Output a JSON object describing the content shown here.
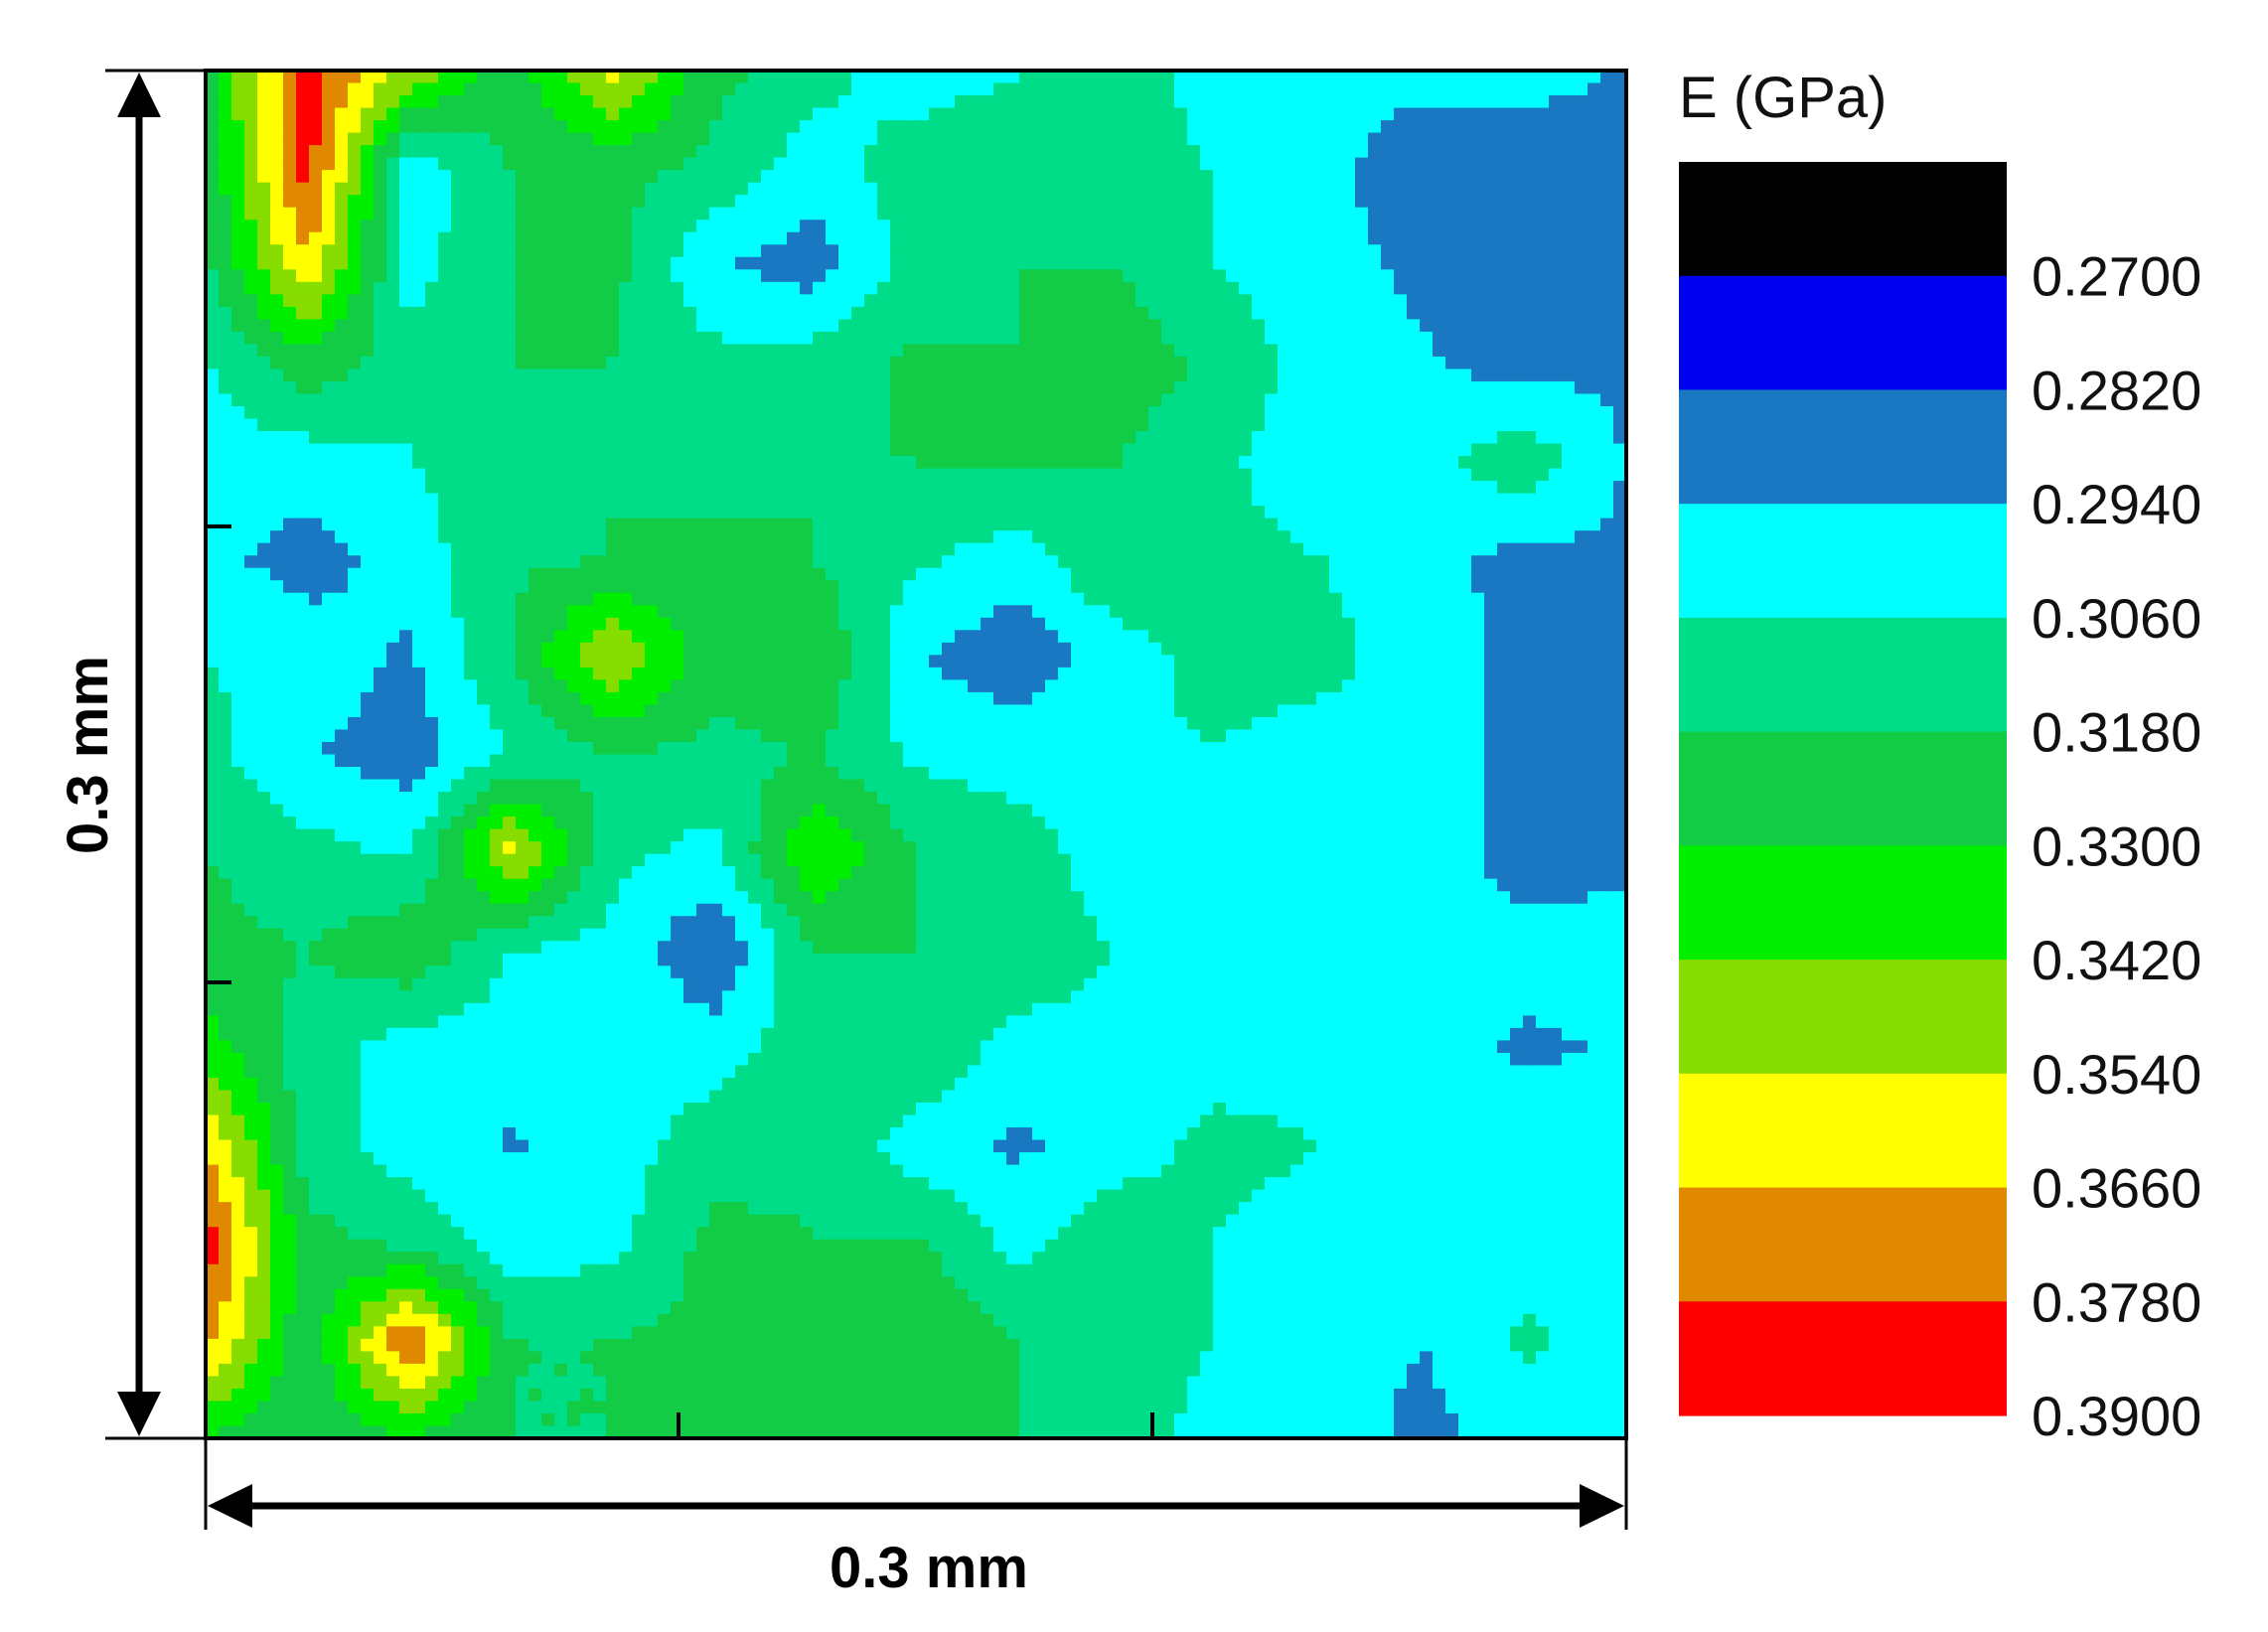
{
  "chart_data": {
    "type": "heatmap",
    "title": "",
    "xlabel": "0.3 mm",
    "ylabel": "0.3 mm",
    "colorbar": {
      "title": "E (GPa)",
      "tick_labels": [
        "0.2700",
        "0.2820",
        "0.2940",
        "0.3060",
        "0.3180",
        "0.3300",
        "0.3420",
        "0.3540",
        "0.3660",
        "0.3780",
        "0.3900"
      ],
      "levels": [
        0.27,
        0.282,
        0.294,
        0.306,
        0.318,
        0.33,
        0.342,
        0.354,
        0.366,
        0.378,
        0.39
      ],
      "band_colors": [
        "#000000",
        "#0000ee",
        "#1a78c2",
        "#00ffff",
        "#00dd88",
        "#11cc44",
        "#00ee00",
        "#88dd00",
        "#ffff00",
        "#e08800",
        "#ff0000"
      ]
    },
    "field_values": [
      [
        0.325,
        0.383,
        0.352,
        0.322,
        0.36,
        0.322,
        0.31,
        0.3,
        0.305,
        0.312,
        0.3,
        0.3,
        0.3,
        0.298,
        0.293
      ],
      [
        0.32,
        0.384,
        0.298,
        0.318,
        0.322,
        0.315,
        0.3,
        0.312,
        0.318,
        0.312,
        0.305,
        0.3,
        0.282,
        0.288,
        0.29
      ],
      [
        0.315,
        0.365,
        0.3,
        0.318,
        0.322,
        0.295,
        0.288,
        0.312,
        0.318,
        0.318,
        0.305,
        0.298,
        0.292,
        0.289,
        0.291
      ],
      [
        0.305,
        0.325,
        0.312,
        0.318,
        0.318,
        0.31,
        0.312,
        0.32,
        0.318,
        0.325,
        0.315,
        0.3,
        0.295,
        0.289,
        0.292
      ],
      [
        0.3,
        0.3,
        0.305,
        0.316,
        0.318,
        0.315,
        0.318,
        0.318,
        0.32,
        0.318,
        0.308,
        0.298,
        0.3,
        0.315,
        0.293
      ],
      [
        0.298,
        0.288,
        0.3,
        0.316,
        0.318,
        0.32,
        0.318,
        0.308,
        0.3,
        0.318,
        0.31,
        0.306,
        0.298,
        0.29,
        0.292
      ],
      [
        0.306,
        0.302,
        0.292,
        0.318,
        0.355,
        0.322,
        0.33,
        0.295,
        0.286,
        0.3,
        0.312,
        0.31,
        0.3,
        0.29,
        0.292
      ],
      [
        0.31,
        0.295,
        0.288,
        0.306,
        0.318,
        0.315,
        0.318,
        0.304,
        0.3,
        0.305,
        0.305,
        0.3,
        0.302,
        0.288,
        0.284
      ],
      [
        0.318,
        0.31,
        0.304,
        0.358,
        0.31,
        0.302,
        0.342,
        0.318,
        0.312,
        0.298,
        0.3,
        0.302,
        0.3,
        0.289,
        0.29
      ],
      [
        0.322,
        0.318,
        0.328,
        0.306,
        0.302,
        0.283,
        0.318,
        0.318,
        0.318,
        0.305,
        0.302,
        0.3,
        0.3,
        0.298,
        0.3
      ],
      [
        0.335,
        0.312,
        0.3,
        0.3,
        0.305,
        0.3,
        0.314,
        0.318,
        0.3,
        0.3,
        0.3,
        0.3,
        0.3,
        0.292,
        0.295
      ],
      [
        0.366,
        0.312,
        0.3,
        0.293,
        0.3,
        0.312,
        0.316,
        0.3,
        0.292,
        0.3,
        0.31,
        0.306,
        0.3,
        0.3,
        0.3
      ],
      [
        0.386,
        0.322,
        0.315,
        0.3,
        0.302,
        0.322,
        0.318,
        0.32,
        0.302,
        0.315,
        0.305,
        0.3,
        0.3,
        0.3,
        0.3
      ],
      [
        0.37,
        0.32,
        0.38,
        0.318,
        0.318,
        0.322,
        0.32,
        0.33,
        0.318,
        0.315,
        0.305,
        0.3,
        0.294,
        0.308,
        0.3
      ],
      [
        0.33,
        0.318,
        0.33,
        0.318,
        0.318,
        0.322,
        0.318,
        0.318,
        0.318,
        0.312,
        0.3,
        0.302,
        0.29,
        0.3,
        0.3
      ]
    ]
  }
}
